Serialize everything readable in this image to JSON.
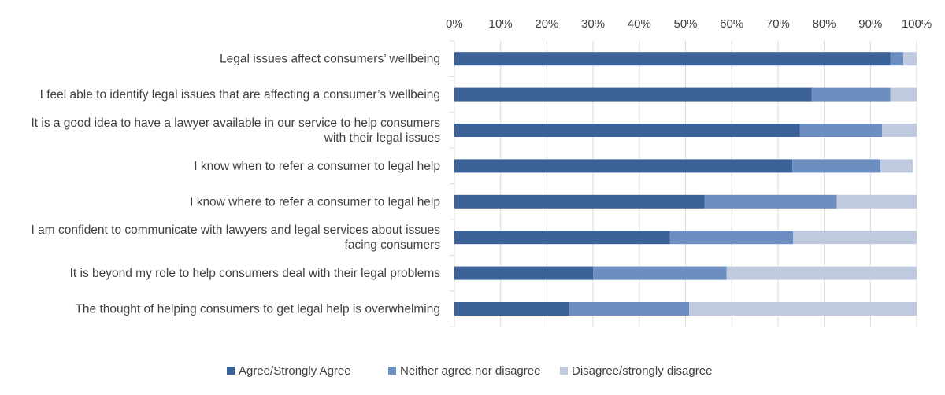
{
  "chart_data": {
    "type": "bar",
    "orientation": "horizontal",
    "stacked": true,
    "title": "",
    "xlabel": "",
    "ylabel": "",
    "xlim": [
      0,
      100
    ],
    "x_ticks": [
      "0%",
      "10%",
      "20%",
      "30%",
      "40%",
      "50%",
      "60%",
      "70%",
      "80%",
      "90%",
      "100%"
    ],
    "x_axis_position": "top",
    "grid": true,
    "legend_position": "bottom",
    "categories": [
      "Legal issues affect consumers’ wellbeing",
      "I feel able to identify legal issues that are affecting a consumer’s wellbeing",
      "It is a good idea to have a lawyer available in our service to help consumers with their legal issues",
      "I know when to refer a consumer to legal help",
      "I know where to refer a consumer to legal help",
      "I am confident to communicate with lawyers and legal services about issues facing consumers",
      "It is beyond my role to help consumers deal with their legal problems",
      "The thought of helping consumers to get legal help is overwhelming"
    ],
    "category_lines": [
      [
        "Legal issues affect consumers’ wellbeing"
      ],
      [
        "I feel able to identify legal issues that are affecting a consumer’s wellbeing"
      ],
      [
        "It is a good idea to have a lawyer available in our service to help consumers",
        "with their legal issues"
      ],
      [
        "I know when to refer a consumer to legal help"
      ],
      [
        "I know where to refer a consumer to legal help"
      ],
      [
        "I am confident to communicate with lawyers and legal services about issues",
        "facing consumers"
      ],
      [
        "It is beyond my role to help consumers deal with their legal problems"
      ],
      [
        "The thought of helping consumers to get legal help is overwhelming"
      ]
    ],
    "series": [
      {
        "name": "Agree/Strongly Agree",
        "color": "#3a6198",
        "values": [
          94.3,
          77.3,
          74.7,
          73.1,
          54.1,
          46.6,
          30.0,
          24.8
        ]
      },
      {
        "name": "Neither agree nor disagree",
        "color": "#6c8ec1",
        "values": [
          2.8,
          17.0,
          17.8,
          19.1,
          28.6,
          26.7,
          28.9,
          26.0
        ]
      },
      {
        "name": "Disagree/strongly disagree",
        "color": "#c0cadf",
        "values": [
          2.9,
          5.7,
          7.5,
          7.0,
          17.3,
          26.7,
          41.1,
          49.2
        ]
      }
    ]
  }
}
